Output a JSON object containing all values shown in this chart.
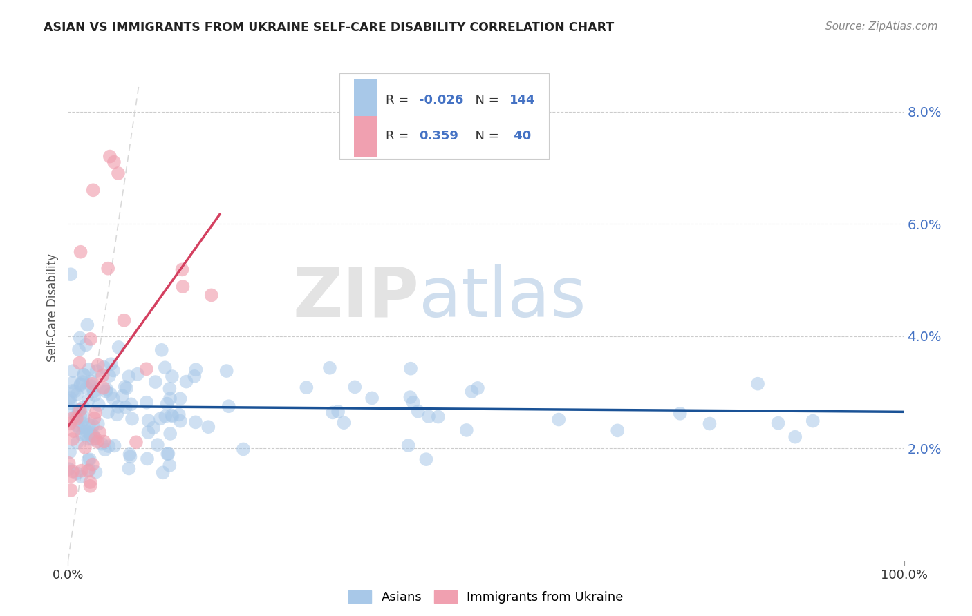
{
  "title": "ASIAN VS IMMIGRANTS FROM UKRAINE SELF-CARE DISABILITY CORRELATION CHART",
  "source": "Source: ZipAtlas.com",
  "ylabel": "Self-Care Disability",
  "asian_R": -0.026,
  "asian_N": 144,
  "ukraine_R": 0.359,
  "ukraine_N": 40,
  "asian_color": "#a8c8e8",
  "ukraine_color": "#f0a0b0",
  "asian_line_color": "#1a5296",
  "ukraine_line_color": "#d44060",
  "diagonal_color": "#d0d0d0",
  "watermark_zip": "ZIP",
  "watermark_atlas": "atlas",
  "xlim": [
    0.0,
    1.0
  ],
  "ylim": [
    0.0,
    0.09
  ],
  "ytick_positions": [
    0.02,
    0.04,
    0.06,
    0.08
  ],
  "ytick_labels": [
    "2.0%",
    "4.0%",
    "6.0%",
    "8.0%"
  ],
  "xtick_positions": [
    0.0,
    1.0
  ],
  "xtick_labels": [
    "0.0%",
    "100.0%"
  ],
  "background_color": "#ffffff"
}
